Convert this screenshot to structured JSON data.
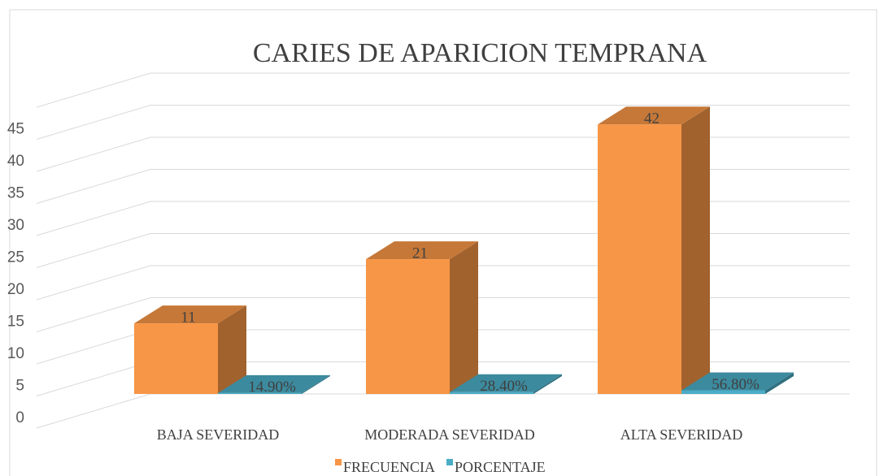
{
  "chart_data": {
    "type": "bar3d",
    "title": "CARIES DE APARICION TEMPRANA",
    "categories": [
      "BAJA SEVERIDAD",
      "MODERADA SEVERIDAD",
      "ALTA SEVERIDAD"
    ],
    "series": [
      {
        "name": "FRECUENCIA",
        "color": "#f79646",
        "values": [
          11,
          21,
          42
        ]
      },
      {
        "name": "PORCENTAJE",
        "color": "#4bacc6",
        "values": [
          0.149,
          0.284,
          0.568
        ],
        "value_labels": [
          "14.90%",
          "28.40%",
          "56.80%"
        ]
      }
    ],
    "ylim": [
      0,
      50
    ],
    "yticks": [
      0,
      5,
      10,
      15,
      20,
      25,
      30,
      35,
      40,
      45
    ],
    "grid": true,
    "legend": "bottom"
  }
}
